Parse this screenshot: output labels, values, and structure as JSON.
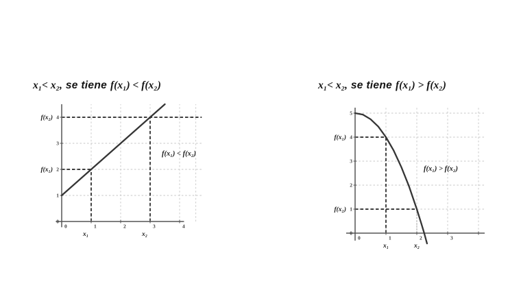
{
  "panels": [
    {
      "title_parts": {
        "lhs": "x₁< x₂,",
        "connector": "se tiene",
        "rhs": "f(x₁) < f(x₂)"
      }
    },
    {
      "title_parts": {
        "lhs": "x₁< x₂,",
        "connector": "se tiene",
        "rhs": "f(x₁) > f(x₂)"
      }
    }
  ],
  "chart_data": [
    {
      "type": "line",
      "title": "x₁< x₂, se tiene f(x₁) < f(x₂)",
      "annotation": "f(x₁) < f(x₂)",
      "xlim": [
        -0.3,
        4.8
      ],
      "ylim": [
        -0.6,
        4.6
      ],
      "grid": true,
      "points": [
        [
          0,
          1
        ],
        [
          1,
          2
        ],
        [
          2,
          3
        ],
        [
          3,
          4
        ],
        [
          3.5,
          4.5
        ]
      ],
      "marked": {
        "x1": 1,
        "fx1": 2,
        "x2": 3,
        "fx2": 4
      },
      "dashed_lines": [
        {
          "from": [
            1,
            0
          ],
          "to": [
            1,
            2
          ],
          "style": "bold"
        },
        {
          "from": [
            0,
            2
          ],
          "to": [
            1,
            2
          ],
          "style": "bold"
        },
        {
          "from": [
            3,
            0
          ],
          "to": [
            3,
            4
          ],
          "style": "bold"
        },
        {
          "from": [
            0,
            4
          ],
          "to": [
            4.75,
            4
          ],
          "style": "bold"
        }
      ],
      "x_ticks": [
        1,
        2,
        3,
        4
      ],
      "y_ticks": [
        1,
        2,
        3,
        4
      ],
      "x_tick_labels": [
        {
          "v": 0,
          "t": "0"
        },
        {
          "v": 1,
          "t": "1"
        },
        {
          "v": 2,
          "t": "2"
        },
        {
          "v": 3,
          "t": "3"
        },
        {
          "v": 4,
          "t": "4"
        }
      ],
      "y_tick_labels": [
        {
          "v": 0,
          "t": "0"
        },
        {
          "v": 1,
          "t": "1"
        },
        {
          "v": 2,
          "t": "2"
        },
        {
          "v": 3,
          "t": "3"
        },
        {
          "v": 4,
          "t": "4"
        }
      ],
      "x_var_labels": [
        {
          "v": 1,
          "t": "x₁"
        },
        {
          "v": 3,
          "t": "x₂"
        }
      ],
      "y_var_labels": [
        {
          "v": 2,
          "t": "f(x₁)"
        },
        {
          "v": 4,
          "t": "f(x₂)"
        }
      ]
    },
    {
      "type": "line",
      "title": "x₁< x₂, se tiene f(x₁) > f(x₂)",
      "annotation": "f(x₁) > f(x₂)",
      "xlim": [
        -0.3,
        4.2
      ],
      "ylim": [
        -0.5,
        5.3
      ],
      "grid": true,
      "points": [
        [
          0,
          5
        ],
        [
          0.25,
          4.94
        ],
        [
          0.5,
          4.75
        ],
        [
          0.75,
          4.44
        ],
        [
          1,
          4
        ],
        [
          1.25,
          3.44
        ],
        [
          1.5,
          2.75
        ],
        [
          1.75,
          1.94
        ],
        [
          2,
          1
        ],
        [
          2.15,
          0.38
        ],
        [
          2.24,
          0
        ],
        [
          2.33,
          -0.43
        ]
      ],
      "marked": {
        "x1": 1,
        "fx1": 4,
        "x2": 2,
        "fx2": 1
      },
      "dashed_lines": [
        {
          "from": [
            1,
            0
          ],
          "to": [
            1,
            4
          ],
          "style": "bold"
        },
        {
          "from": [
            0,
            4
          ],
          "to": [
            1,
            4
          ],
          "style": "bold"
        },
        {
          "from": [
            0,
            1
          ],
          "to": [
            2,
            1
          ],
          "style": "bold"
        },
        {
          "from": [
            2,
            0
          ],
          "to": [
            2,
            1
          ],
          "style": "light"
        }
      ],
      "x_ticks": [
        1,
        2,
        3,
        4
      ],
      "y_ticks": [
        1,
        2,
        3,
        4,
        5
      ],
      "x_tick_labels": [
        {
          "v": 0,
          "t": "0"
        },
        {
          "v": 1,
          "t": "1"
        },
        {
          "v": 2,
          "t": "2"
        },
        {
          "v": 3,
          "t": "3"
        }
      ],
      "y_tick_labels": [
        {
          "v": 0,
          "t": "0"
        },
        {
          "v": 1,
          "t": "1"
        },
        {
          "v": 2,
          "t": "2"
        },
        {
          "v": 3,
          "t": "3"
        },
        {
          "v": 4,
          "t": "4"
        },
        {
          "v": 5,
          "t": "5"
        }
      ],
      "x_var_labels": [
        {
          "v": 1,
          "t": "x₁"
        },
        {
          "v": 2,
          "t": "x₂"
        }
      ],
      "y_var_labels": [
        {
          "v": 4,
          "t": "f(x₁)"
        },
        {
          "v": 1,
          "t": "f(x₂)"
        }
      ]
    }
  ]
}
